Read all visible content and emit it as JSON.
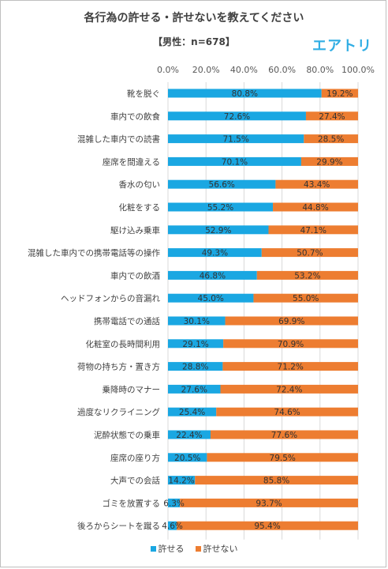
{
  "title": "各行為の許せる・許せないを教えてください",
  "subtitle": "【男性：n=678】",
  "brand": "エアトリ",
  "colors": {
    "allow": "#1aa7e2",
    "disallow": "#ed7d31",
    "grid": "#d9d9d9"
  },
  "chart_data": {
    "type": "bar",
    "orientation": "horizontal",
    "stacked": "100%",
    "xlim": [
      0,
      100
    ],
    "x_ticks": [
      "0.0%",
      "20.0%",
      "40.0%",
      "60.0%",
      "80.0%",
      "100.0%"
    ],
    "grid": true,
    "legend_position": "bottom",
    "categories": [
      "靴を脱ぐ",
      "車内での飲食",
      "混雑した車内での読書",
      "座席を間違える",
      "香水の匂い",
      "化粧をする",
      "駆け込み乗車",
      "混雑した車内での携帯電話等の操作",
      "車内での飲酒",
      "ヘッドフォンからの音漏れ",
      "携帯電話での通話",
      "化粧室の長時間利用",
      "荷物の持ち方・置き方",
      "乗降時のマナー",
      "過度なリクライニング",
      "泥酔状態での乗車",
      "座席の座り方",
      "大声での会話",
      "ゴミを放置する",
      "後ろからシートを蹴る"
    ],
    "series": [
      {
        "name": "許せる",
        "values": [
          80.8,
          72.6,
          71.5,
          70.1,
          56.6,
          55.2,
          52.9,
          49.3,
          46.8,
          45.0,
          30.1,
          29.1,
          28.8,
          27.6,
          25.4,
          22.4,
          20.5,
          14.2,
          6.3,
          4.6
        ],
        "labels": [
          "80.8%",
          "72.6%",
          "71.5%",
          "70.1%",
          "56.6%",
          "55.2%",
          "52.9%",
          "49.3%",
          "46.8%",
          "45.0%",
          "30.1%",
          "29.1%",
          "28.8%",
          "27.6%",
          "25.4%",
          "22.4%",
          "20.5%",
          "14.2%",
          "6.3%",
          "4.6%"
        ]
      },
      {
        "name": "許せない",
        "values": [
          19.2,
          27.4,
          28.5,
          29.9,
          43.4,
          44.8,
          47.1,
          50.7,
          53.2,
          55.0,
          69.9,
          70.9,
          71.2,
          72.4,
          74.6,
          77.6,
          79.5,
          85.8,
          93.7,
          95.4
        ],
        "labels": [
          "19.2%",
          "27.4%",
          "28.5%",
          "29.9%",
          "43.4%",
          "44.8%",
          "47.1%",
          "50.7%",
          "53.2%",
          "55.0%",
          "69.9%",
          "70.9%",
          "71.2%",
          "72.4%",
          "74.6%",
          "77.6%",
          "79.5%",
          "85.8%",
          "93.7%",
          "95.4%"
        ]
      }
    ]
  }
}
